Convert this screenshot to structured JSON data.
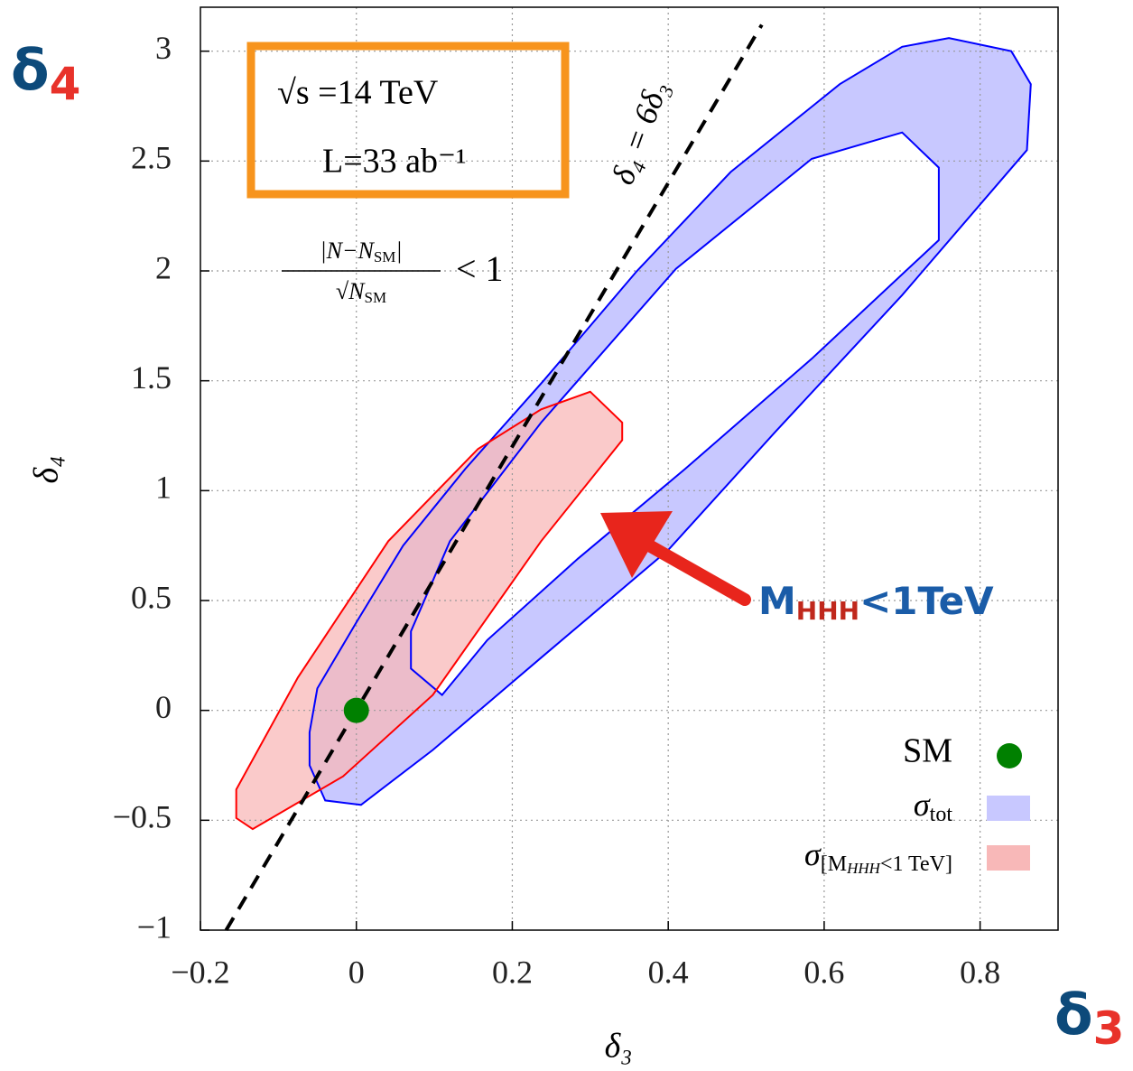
{
  "chart_data": {
    "type": "contour",
    "xlabel": "δ₃",
    "ylabel": "δ₄",
    "xlim": [
      -0.2,
      0.9
    ],
    "ylim": [
      -1,
      3.2
    ],
    "xticks": [
      {
        "value": -0.2,
        "label": "−0.2"
      },
      0,
      0.2,
      0.4,
      0.6,
      0.8
    ],
    "yticks": [
      {
        "value": -1,
        "label": "−1"
      },
      {
        "value": -0.5,
        "label": "−0.5"
      },
      0,
      0.5,
      1,
      1.5,
      2,
      2.5,
      3
    ],
    "grid": true,
    "corner_labels": {
      "y": {
        "symbol": "δ",
        "index": "4"
      },
      "x": {
        "symbol": "δ",
        "index": "3"
      }
    },
    "annotations": {
      "energy": "√s =14 TeV",
      "luminosity": "L=33 ab⁻¹",
      "criterion": {
        "numerator": "|N−N",
        "numerator_sub": "SM",
        "numerator_end": "|",
        "denominator": "√N",
        "denominator_sub": "SM",
        "relation": "< 1"
      },
      "line_label": "δ₄ = 6δ₃",
      "cut": {
        "base": "M",
        "sub": "HHH",
        "rest": "<1TeV"
      }
    },
    "regions": [
      {
        "name": "σ",
        "name_sub": "tot",
        "color": "#0000ff",
        "fill": "#c8c8ff",
        "outer_x": [
          -0.04,
          -0.06,
          -0.06,
          -0.05,
          0.0,
          0.06,
          0.14,
          0.24,
          0.36,
          0.48,
          0.62,
          0.7,
          0.76,
          0.84,
          0.865,
          0.86,
          0.7,
          0.538,
          0.4,
          0.237,
          0.098,
          0.006
        ],
        "outer_y": [
          -0.41,
          -0.25,
          -0.1,
          0.1,
          0.4,
          0.75,
          1.1,
          1.5,
          2.0,
          2.45,
          2.85,
          3.02,
          3.06,
          3.0,
          2.85,
          2.55,
          1.89,
          1.27,
          0.73,
          0.24,
          -0.18,
          -0.43
        ],
        "inner_x": [
          0.11,
          0.07,
          0.07,
          0.12,
          0.237,
          0.41,
          0.584,
          0.7,
          0.747,
          0.747,
          0.584,
          0.422,
          0.284,
          0.168
        ],
        "inner_y": [
          0.07,
          0.19,
          0.36,
          0.77,
          1.31,
          2.01,
          2.51,
          2.63,
          2.47,
          2.14,
          1.6,
          1.1,
          0.69,
          0.32
        ]
      },
      {
        "name": "σ",
        "name_sub": "[M",
        "name_sub2": "HHH",
        "name_sub3": "<1 TeV]",
        "color": "#ff0000",
        "fill": "#f8b8b8",
        "outer_x": [
          0.3,
          0.341,
          0.341,
          0.237,
          0.098,
          -0.017,
          -0.133,
          -0.154,
          -0.154,
          -0.075,
          0.041,
          0.156,
          0.237
        ],
        "outer_y": [
          1.45,
          1.31,
          1.23,
          0.77,
          0.07,
          -0.3,
          -0.54,
          -0.49,
          -0.36,
          0.15,
          0.77,
          1.19,
          1.37
        ]
      }
    ],
    "points": {
      "name": "SM",
      "color": "#008000",
      "x": [
        0
      ],
      "y": [
        0
      ]
    },
    "line": {
      "color": "#000000",
      "dashed": true,
      "x": [
        -0.167,
        0.52
      ],
      "y": [
        -1,
        3.12
      ]
    },
    "legend": "lower right"
  }
}
